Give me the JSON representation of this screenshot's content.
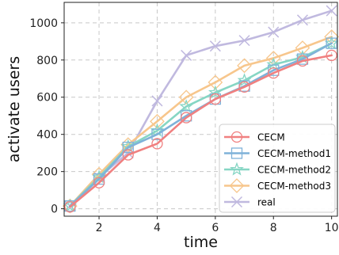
{
  "chart_data": {
    "type": "line",
    "title": "",
    "xlabel": "time",
    "ylabel": "activate users",
    "xlim": [
      0.8,
      10.2
    ],
    "ylim": [
      -40,
      1110
    ],
    "xticks": [
      2,
      4,
      6,
      8,
      10
    ],
    "yticks": [
      0,
      200,
      400,
      600,
      800,
      1000
    ],
    "grid": true,
    "legend_position": "bottom-right",
    "x": [
      1,
      2,
      3,
      4,
      5,
      6,
      7,
      8,
      9,
      10
    ],
    "series": [
      {
        "name": "CECM",
        "color": "#f08080",
        "marker": "circle",
        "values": [
          10,
          140,
          290,
          350,
          490,
          590,
          655,
          730,
          795,
          825
        ]
      },
      {
        "name": "CECM-method1",
        "color": "#7fb2d9",
        "marker": "square",
        "values": [
          15,
          160,
          330,
          400,
          500,
          590,
          660,
          745,
          805,
          890
        ]
      },
      {
        "name": "CECM-method2",
        "color": "#86d6c4",
        "marker": "star",
        "values": [
          15,
          170,
          335,
          420,
          550,
          625,
          690,
          775,
          815,
          890
        ]
      },
      {
        "name": "CECM-method3",
        "color": "#f7c68c",
        "marker": "diamond",
        "values": [
          15,
          185,
          345,
          470,
          600,
          680,
          770,
          810,
          865,
          925
        ]
      },
      {
        "name": "real",
        "color": "#c0b9df",
        "marker": "x",
        "values": [
          15,
          170,
          300,
          580,
          825,
          875,
          905,
          950,
          1015,
          1065
        ]
      }
    ]
  }
}
